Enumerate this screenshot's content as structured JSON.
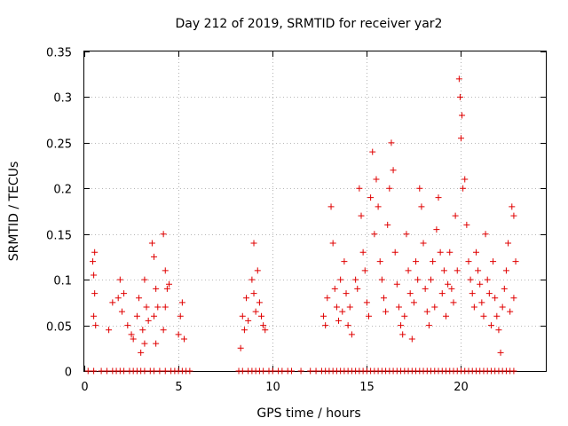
{
  "chart_data": {
    "type": "scatter",
    "title": "Day 212 of 2019, SRMTID for receiver yar2",
    "xlabel": "GPS time / hours",
    "ylabel": "SRMTID / TECUs",
    "xlim": [
      0,
      24.5
    ],
    "ylim": [
      0,
      0.35
    ],
    "xticks": [
      0,
      5,
      10,
      15,
      20
    ],
    "xtick_labels": [
      "0",
      "5",
      "10",
      "15",
      "20"
    ],
    "yticks": [
      0,
      0.05,
      0.1,
      0.15,
      0.2,
      0.25,
      0.3,
      0.35
    ],
    "ytick_labels": [
      "0",
      "0.05",
      "0.1",
      "0.15",
      "0.2",
      "0.25",
      "0.3",
      "0.35"
    ],
    "grid": true,
    "marker": "+",
    "color": "#e00000",
    "series": [
      {
        "name": "SRMTID",
        "points": [
          [
            0.45,
            0.12
          ],
          [
            0.5,
            0.105
          ],
          [
            0.55,
            0.085
          ],
          [
            0.5,
            0.06
          ],
          [
            0.6,
            0.05
          ],
          [
            0.55,
            0.13
          ],
          [
            1.3,
            0.045
          ],
          [
            1.5,
            0.075
          ],
          [
            1.8,
            0.08
          ],
          [
            1.9,
            0.1
          ],
          [
            2.0,
            0.065
          ],
          [
            2.1,
            0.085
          ],
          [
            2.3,
            0.05
          ],
          [
            2.5,
            0.04
          ],
          [
            2.6,
            0.035
          ],
          [
            2.8,
            0.06
          ],
          [
            2.9,
            0.08
          ],
          [
            3.0,
            0.02
          ],
          [
            3.1,
            0.045
          ],
          [
            3.2,
            0.1
          ],
          [
            3.3,
            0.07
          ],
          [
            3.2,
            0.03
          ],
          [
            3.4,
            0.055
          ],
          [
            3.6,
            0.14
          ],
          [
            3.7,
            0.125
          ],
          [
            3.8,
            0.09
          ],
          [
            3.7,
            0.06
          ],
          [
            3.9,
            0.07
          ],
          [
            3.8,
            0.03
          ],
          [
            4.2,
            0.15
          ],
          [
            4.3,
            0.11
          ],
          [
            4.4,
            0.09
          ],
          [
            4.3,
            0.07
          ],
          [
            4.5,
            0.095
          ],
          [
            4.2,
            0.045
          ],
          [
            5.0,
            0.04
          ],
          [
            5.1,
            0.06
          ],
          [
            5.2,
            0.075
          ],
          [
            5.3,
            0.035
          ],
          [
            8.3,
            0.025
          ],
          [
            8.4,
            0.06
          ],
          [
            8.5,
            0.045
          ],
          [
            8.6,
            0.08
          ],
          [
            8.7,
            0.055
          ],
          [
            8.9,
            0.1
          ],
          [
            9.0,
            0.14
          ],
          [
            9.0,
            0.085
          ],
          [
            9.1,
            0.065
          ],
          [
            9.2,
            0.11
          ],
          [
            9.3,
            0.075
          ],
          [
            9.4,
            0.06
          ],
          [
            9.5,
            0.05
          ],
          [
            9.6,
            0.045
          ],
          [
            12.7,
            0.06
          ],
          [
            12.8,
            0.05
          ],
          [
            12.9,
            0.08
          ],
          [
            13.1,
            0.18
          ],
          [
            13.2,
            0.14
          ],
          [
            13.3,
            0.09
          ],
          [
            13.4,
            0.07
          ],
          [
            13.5,
            0.055
          ],
          [
            13.6,
            0.1
          ],
          [
            13.7,
            0.065
          ],
          [
            13.8,
            0.12
          ],
          [
            13.9,
            0.085
          ],
          [
            14.0,
            0.05
          ],
          [
            14.1,
            0.07
          ],
          [
            14.2,
            0.04
          ],
          [
            14.4,
            0.1
          ],
          [
            14.5,
            0.09
          ],
          [
            14.6,
            0.2
          ],
          [
            14.7,
            0.17
          ],
          [
            14.8,
            0.13
          ],
          [
            14.9,
            0.11
          ],
          [
            15.0,
            0.075
          ],
          [
            15.1,
            0.06
          ],
          [
            15.2,
            0.19
          ],
          [
            15.3,
            0.24
          ],
          [
            15.4,
            0.15
          ],
          [
            15.5,
            0.21
          ],
          [
            15.6,
            0.18
          ],
          [
            15.7,
            0.12
          ],
          [
            15.8,
            0.1
          ],
          [
            15.9,
            0.08
          ],
          [
            16.0,
            0.065
          ],
          [
            16.1,
            0.16
          ],
          [
            16.2,
            0.2
          ],
          [
            16.3,
            0.25
          ],
          [
            16.4,
            0.22
          ],
          [
            16.5,
            0.13
          ],
          [
            16.6,
            0.095
          ],
          [
            16.7,
            0.07
          ],
          [
            16.8,
            0.05
          ],
          [
            16.9,
            0.04
          ],
          [
            17.0,
            0.06
          ],
          [
            17.1,
            0.15
          ],
          [
            17.2,
            0.11
          ],
          [
            17.3,
            0.085
          ],
          [
            17.4,
            0.035
          ],
          [
            17.5,
            0.075
          ],
          [
            17.6,
            0.12
          ],
          [
            17.7,
            0.1
          ],
          [
            17.8,
            0.2
          ],
          [
            17.9,
            0.18
          ],
          [
            18.0,
            0.14
          ],
          [
            18.1,
            0.09
          ],
          [
            18.2,
            0.065
          ],
          [
            18.3,
            0.05
          ],
          [
            18.4,
            0.1
          ],
          [
            18.5,
            0.12
          ],
          [
            18.6,
            0.07
          ],
          [
            18.7,
            0.155
          ],
          [
            18.8,
            0.19
          ],
          [
            18.9,
            0.13
          ],
          [
            19.0,
            0.085
          ],
          [
            19.1,
            0.11
          ],
          [
            19.2,
            0.06
          ],
          [
            19.3,
            0.095
          ],
          [
            19.4,
            0.13
          ],
          [
            19.5,
            0.09
          ],
          [
            19.6,
            0.075
          ],
          [
            19.7,
            0.17
          ],
          [
            19.8,
            0.11
          ],
          [
            19.9,
            0.32
          ],
          [
            19.95,
            0.3
          ],
          [
            20.0,
            0.255
          ],
          [
            20.05,
            0.28
          ],
          [
            20.1,
            0.2
          ],
          [
            20.2,
            0.21
          ],
          [
            20.3,
            0.16
          ],
          [
            20.4,
            0.12
          ],
          [
            20.5,
            0.1
          ],
          [
            20.6,
            0.085
          ],
          [
            20.7,
            0.07
          ],
          [
            20.8,
            0.13
          ],
          [
            20.9,
            0.11
          ],
          [
            21.0,
            0.095
          ],
          [
            21.1,
            0.075
          ],
          [
            21.2,
            0.06
          ],
          [
            21.3,
            0.15
          ],
          [
            21.4,
            0.1
          ],
          [
            21.5,
            0.085
          ],
          [
            21.6,
            0.05
          ],
          [
            21.7,
            0.12
          ],
          [
            21.8,
            0.08
          ],
          [
            21.9,
            0.06
          ],
          [
            22.0,
            0.045
          ],
          [
            22.1,
            0.02
          ],
          [
            22.2,
            0.07
          ],
          [
            22.3,
            0.09
          ],
          [
            22.4,
            0.11
          ],
          [
            22.5,
            0.14
          ],
          [
            22.6,
            0.065
          ],
          [
            22.7,
            0.18
          ],
          [
            22.8,
            0.17
          ],
          [
            22.9,
            0.12
          ],
          [
            22.8,
            0.08
          ]
        ]
      }
    ],
    "zero_points_x": [
      0.2,
      0.5,
      0.9,
      1.2,
      1.5,
      1.7,
      1.9,
      2.1,
      2.4,
      2.6,
      2.8,
      3.0,
      3.2,
      3.5,
      3.7,
      4.0,
      4.3,
      4.6,
      4.8,
      5.0,
      5.2,
      5.4,
      5.6,
      8.2,
      8.4,
      8.7,
      8.9,
      9.1,
      9.3,
      9.5,
      9.8,
      10.0,
      10.3,
      10.5,
      10.8,
      11.0,
      11.5,
      12.0,
      12.3,
      12.6,
      12.8,
      13.0,
      13.2,
      13.4,
      13.6,
      13.8,
      14.0,
      14.2,
      14.4,
      14.6,
      14.8,
      15.0,
      15.2,
      15.4,
      15.6,
      15.8,
      16.0,
      16.2,
      16.4,
      16.6,
      16.8,
      17.0,
      17.2,
      17.4,
      17.6,
      17.8,
      18.0,
      18.2,
      18.4,
      18.6,
      18.8,
      19.0,
      19.2,
      19.4,
      19.6,
      19.8,
      20.0,
      20.2,
      20.4,
      20.6,
      20.8,
      21.0,
      21.2,
      21.4,
      21.6,
      21.8,
      22.0,
      22.2,
      22.4,
      22.6,
      22.8
    ]
  }
}
